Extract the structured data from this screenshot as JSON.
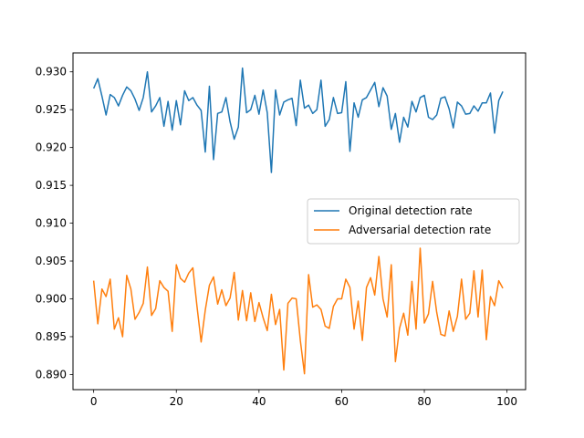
{
  "chart_data": {
    "type": "line",
    "title": "",
    "xlabel": "",
    "ylabel": "",
    "xlim": [
      -5,
      104.5
    ],
    "ylim": [
      0.888,
      0.9325
    ],
    "xticks": [
      0,
      20,
      40,
      60,
      80,
      100
    ],
    "yticks": [
      0.89,
      0.895,
      0.9,
      0.905,
      0.91,
      0.915,
      0.92,
      0.925,
      0.93
    ],
    "grid": false,
    "legend_position": "center-right",
    "x": [
      0,
      1,
      2,
      3,
      4,
      5,
      6,
      7,
      8,
      9,
      10,
      11,
      12,
      13,
      14,
      15,
      16,
      17,
      18,
      19,
      20,
      21,
      22,
      23,
      24,
      25,
      26,
      27,
      28,
      29,
      30,
      31,
      32,
      33,
      34,
      35,
      36,
      37,
      38,
      39,
      40,
      41,
      42,
      43,
      44,
      45,
      46,
      47,
      48,
      49,
      50,
      51,
      52,
      53,
      54,
      55,
      56,
      57,
      58,
      59,
      60,
      61,
      62,
      63,
      64,
      65,
      66,
      67,
      68,
      69,
      70,
      71,
      72,
      73,
      74,
      75,
      76,
      77,
      78,
      79,
      80,
      81,
      82,
      83,
      84,
      85,
      86,
      87,
      88,
      89,
      90,
      91,
      92,
      93,
      94,
      95,
      96,
      97,
      98,
      99
    ],
    "series": [
      {
        "name": "Original detection rate",
        "color": "#1f77b4",
        "values": [
          0.9278,
          0.9291,
          0.9268,
          0.9243,
          0.927,
          0.9266,
          0.9255,
          0.9269,
          0.928,
          0.9275,
          0.9264,
          0.9249,
          0.9266,
          0.93,
          0.9247,
          0.9255,
          0.9266,
          0.9228,
          0.9261,
          0.9223,
          0.9262,
          0.923,
          0.9275,
          0.9262,
          0.9266,
          0.9256,
          0.9249,
          0.9194,
          0.9281,
          0.9184,
          0.9245,
          0.9247,
          0.9266,
          0.9234,
          0.9211,
          0.9227,
          0.9305,
          0.9246,
          0.925,
          0.9269,
          0.9244,
          0.9276,
          0.9246,
          0.9167,
          0.9276,
          0.9243,
          0.926,
          0.9263,
          0.9265,
          0.9229,
          0.9289,
          0.9252,
          0.9256,
          0.9245,
          0.925,
          0.9289,
          0.9228,
          0.9237,
          0.9266,
          0.9245,
          0.9246,
          0.9287,
          0.9195,
          0.9259,
          0.924,
          0.9263,
          0.9266,
          0.9276,
          0.9286,
          0.9254,
          0.9279,
          0.9268,
          0.9224,
          0.9245,
          0.9207,
          0.924,
          0.9227,
          0.9261,
          0.9247,
          0.9266,
          0.9269,
          0.924,
          0.9237,
          0.9243,
          0.9265,
          0.9267,
          0.9251,
          0.9226,
          0.926,
          0.9255,
          0.9244,
          0.9245,
          0.9255,
          0.9248,
          0.9259,
          0.9259,
          0.9272,
          0.9219,
          0.9262,
          0.9274
        ]
      },
      {
        "name": "Adversarial detection rate",
        "color": "#ff7f0e",
        "values": [
          0.9024,
          0.8967,
          0.9013,
          0.9003,
          0.9026,
          0.896,
          0.8975,
          0.895,
          0.9031,
          0.9013,
          0.8973,
          0.8982,
          0.8994,
          0.9042,
          0.8978,
          0.8987,
          0.9024,
          0.9015,
          0.901,
          0.8957,
          0.9045,
          0.9027,
          0.9022,
          0.9034,
          0.9041,
          0.899,
          0.8943,
          0.8985,
          0.9018,
          0.9029,
          0.8993,
          0.9012,
          0.8991,
          0.9001,
          0.9035,
          0.8972,
          0.9011,
          0.8971,
          0.9008,
          0.897,
          0.8995,
          0.8975,
          0.8958,
          0.9006,
          0.8966,
          0.8986,
          0.8906,
          0.8994,
          0.9001,
          0.9,
          0.8945,
          0.8901,
          0.9032,
          0.8989,
          0.8992,
          0.8986,
          0.8964,
          0.8961,
          0.899,
          0.9,
          0.9,
          0.9026,
          0.9015,
          0.896,
          0.8997,
          0.8945,
          0.9015,
          0.9028,
          0.9005,
          0.9056,
          0.9,
          0.8976,
          0.9045,
          0.8917,
          0.8961,
          0.8981,
          0.8952,
          0.9023,
          0.896,
          0.9067,
          0.8968,
          0.898,
          0.9023,
          0.8982,
          0.8953,
          0.8951,
          0.8984,
          0.8957,
          0.8977,
          0.9026,
          0.8973,
          0.8981,
          0.9037,
          0.8976,
          0.9038,
          0.8946,
          0.9003,
          0.8991,
          0.9024,
          0.9014
        ]
      }
    ]
  }
}
